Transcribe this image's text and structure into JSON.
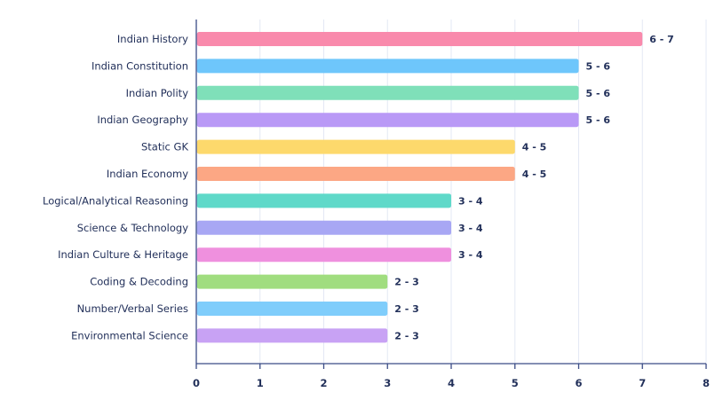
{
  "chart_data": {
    "type": "bar",
    "orientation": "horizontal",
    "title": "",
    "xlabel": "",
    "ylabel": "",
    "categories": [
      "Indian History",
      "Indian Constitution",
      "Indian Polity",
      "Indian Geography",
      "Static GK",
      "Indian Economy",
      "Logical/Analytical Reasoning",
      "Science & Technology",
      "Indian Culture & Heritage",
      "Coding & Decoding",
      "Number/Verbal Series",
      "Environmental Science"
    ],
    "values": [
      7,
      6,
      6,
      6,
      5,
      5,
      4,
      4,
      4,
      3,
      3,
      3
    ],
    "value_labels": [
      "6 - 7",
      "5 - 6",
      "5 - 6",
      "5 - 6",
      "4 - 5",
      "4 - 5",
      "3 - 4",
      "3 - 4",
      "3 - 4",
      "2 - 3",
      "2 - 3",
      "2 - 3"
    ],
    "colors": [
      "#f98aac",
      "#6ec6fb",
      "#7fe0b9",
      "#b999f6",
      "#fdd96c",
      "#fca784",
      "#5fd9c9",
      "#a8a7f4",
      "#ef90de",
      "#a0dd7f",
      "#7fcdfb",
      "#c8a2f4"
    ],
    "xticks": [
      0,
      1,
      2,
      3,
      4,
      5,
      6,
      7,
      8
    ],
    "xlim": [
      0,
      8
    ],
    "grid": true
  }
}
